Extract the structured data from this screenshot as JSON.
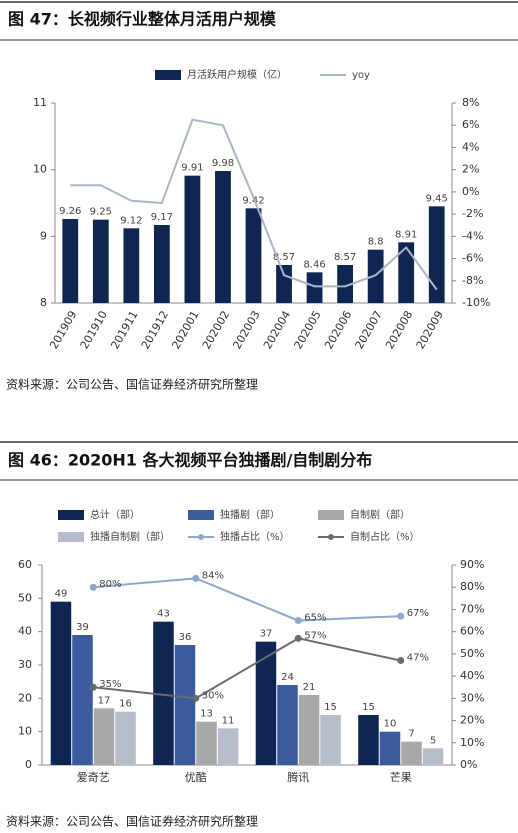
{
  "chart_data": [
    {
      "type": "bar",
      "title": "图 47：长视频行业整体月活用户规模",
      "categories": [
        "201909",
        "201910",
        "201911",
        "201912",
        "202001",
        "202002",
        "202003",
        "202004",
        "202005",
        "202006",
        "202007",
        "202008",
        "202009"
      ],
      "series": [
        {
          "name": "月活跃用户规模（亿）",
          "type": "bar",
          "color": "#0f2552",
          "values": [
            9.26,
            9.25,
            9.12,
            9.17,
            9.91,
            9.98,
            9.42,
            8.57,
            8.46,
            8.57,
            8.8,
            8.91,
            9.45
          ]
        },
        {
          "name": "yoy",
          "type": "line",
          "axis": "y2",
          "color": "#a9b6c9",
          "values": [
            0.6,
            0.6,
            -0.8,
            -1.0,
            6.5,
            6.0,
            -0.5,
            -7.5,
            -8.5,
            -8.5,
            -7.5,
            -5.0,
            -8.8
          ]
        }
      ],
      "ylim": [
        8,
        11
      ],
      "yticks": [
        8,
        9,
        10,
        11
      ],
      "y2lim": [
        -10,
        8
      ],
      "y2ticks": [
        {
          "value": 8,
          "label": "8%"
        },
        {
          "value": 6,
          "label": "6%"
        },
        {
          "value": 4,
          "label": "4%"
        },
        {
          "value": 2,
          "label": "2%"
        },
        {
          "value": 0,
          "label": "0%"
        },
        {
          "value": -2,
          "label": "-2%"
        },
        {
          "value": -4,
          "label": "-4%"
        },
        {
          "value": -6,
          "label": "-6%"
        },
        {
          "value": -8,
          "label": "-8%"
        },
        {
          "value": -10,
          "label": "-10%"
        }
      ],
      "source": "资料来源：公司公告、国信证券经济研究所整理"
    },
    {
      "type": "bar",
      "title": "图 46：2020H1 各大视频平台独播剧/自制剧分布",
      "categories": [
        "爱奇艺",
        "优酷",
        "腾讯",
        "芒果"
      ],
      "series": [
        {
          "name": "总计（部）",
          "type": "bar",
          "color": "#0f2552",
          "values": [
            49,
            43,
            37,
            15
          ]
        },
        {
          "name": "独播剧（部）",
          "type": "bar",
          "color": "#3c5a9e",
          "values": [
            39,
            36,
            24,
            10
          ]
        },
        {
          "name": "自制剧（部）",
          "type": "bar",
          "color": "#a8a8a8",
          "values": [
            17,
            13,
            21,
            7
          ]
        },
        {
          "name": "独播自制剧（部）",
          "type": "bar",
          "color": "#b7bccb",
          "values": [
            16,
            11,
            15,
            5
          ]
        },
        {
          "name": "独播占比（%）",
          "type": "line",
          "axis": "y2",
          "marker": "circle",
          "color": "#8ea8cd",
          "values": [
            80,
            84,
            65,
            67
          ],
          "value_labels": [
            "80%",
            "84%",
            "65%",
            "67%"
          ]
        },
        {
          "name": "自制占比（%）",
          "type": "line",
          "axis": "y2",
          "marker": "circle",
          "color": "#6b6b6b",
          "values": [
            35,
            30,
            57,
            47
          ],
          "value_labels": [
            "35%",
            "30%",
            "57%",
            "47%"
          ]
        }
      ],
      "ylim": [
        0,
        60
      ],
      "yticks": [
        0,
        10,
        20,
        30,
        40,
        50,
        60
      ],
      "y2lim": [
        0,
        90
      ],
      "y2ticks": [
        {
          "value": 0,
          "label": "0%"
        },
        {
          "value": 10,
          "label": "10%"
        },
        {
          "value": 20,
          "label": "20%"
        },
        {
          "value": 30,
          "label": "30%"
        },
        {
          "value": 40,
          "label": "40%"
        },
        {
          "value": 50,
          "label": "50%"
        },
        {
          "value": 60,
          "label": "60%"
        },
        {
          "value": 70,
          "label": "70%"
        },
        {
          "value": 80,
          "label": "80%"
        },
        {
          "value": 90,
          "label": "90%"
        }
      ],
      "source": "资料来源：公司公告、国信证券经济研究所整理"
    }
  ]
}
